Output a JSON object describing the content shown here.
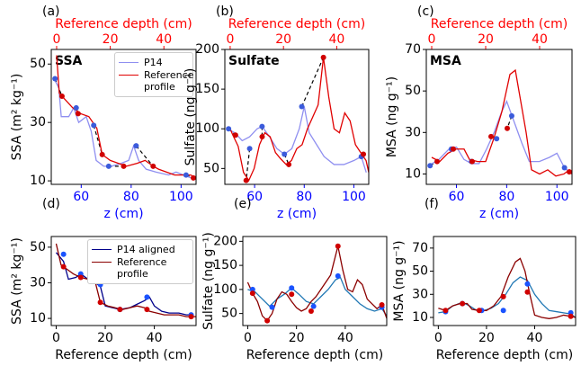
{
  "chart_data": [
    {
      "type": "line",
      "panel_label": "(a)",
      "inner_label": "SSA",
      "ylabel": "SSA (m² kg⁻¹)",
      "xlabel": "z (cm)",
      "x2label": "Reference depth (cm)",
      "xcolor": "#0000ff",
      "x2color": "#ff0000",
      "xlim": [
        48,
        106
      ],
      "xticks": [
        60,
        80,
        100
      ],
      "x2lim": [
        -2,
        52
      ],
      "x2ticks": [
        0,
        20,
        40
      ],
      "ylim": [
        8.8,
        55
      ],
      "yticks": [
        10,
        30,
        50
      ],
      "legend": "upper right",
      "tie_lines": true,
      "series": [
        {
          "name": "P14",
          "color": "#8f8ff0",
          "x": [
            49,
            51,
            52,
            55,
            57,
            59,
            62,
            64,
            66,
            69,
            72,
            76,
            79,
            81,
            83,
            86,
            90,
            95,
            98,
            101,
            104
          ],
          "values": [
            45,
            42,
            32,
            32,
            35,
            30,
            32,
            27,
            17,
            15,
            15,
            16,
            17,
            22,
            17,
            14,
            13,
            12,
            13,
            12,
            11
          ]
        },
        {
          "name": "Reference profile",
          "color": "#e00000",
          "xaxis": "x2",
          "x": [
            0,
            1,
            3,
            6,
            9,
            12,
            15,
            17,
            20,
            23,
            26,
            30,
            33,
            36,
            38,
            41,
            44,
            47,
            50,
            52
          ],
          "values": [
            53,
            40,
            38,
            35,
            33,
            32,
            28,
            19,
            17,
            16,
            15,
            16,
            17,
            15,
            14,
            13,
            12,
            12,
            12,
            11
          ]
        },
        {
          "color": "#3b5bdb",
          "style": "markers",
          "x": [
            49.5,
            58,
            65,
            71,
            82,
            102
          ],
          "values": [
            45,
            35,
            29,
            15,
            22,
            12
          ]
        },
        {
          "color": "#d00000",
          "style": "markers",
          "xaxis": "x2",
          "x": [
            2,
            8,
            17,
            25,
            36,
            51
          ],
          "values": [
            39,
            33,
            19,
            15,
            15,
            11
          ]
        }
      ]
    },
    {
      "type": "line",
      "panel_label": "(b)",
      "inner_label": "Sulfate",
      "ylabel": "Sulfate (ng g⁻¹)",
      "xlabel": "z (cm)",
      "x2label": "Reference depth (cm)",
      "xcolor": "#0000ff",
      "x2color": "#ff0000",
      "xlim": [
        48,
        106
      ],
      "xticks": [
        60,
        80,
        100
      ],
      "x2lim": [
        -2,
        52
      ],
      "x2ticks": [
        0,
        20,
        40
      ],
      "ylim": [
        30,
        200
      ],
      "yticks": [
        50,
        100,
        150,
        200
      ],
      "tie_lines": true,
      "series": [
        {
          "name": "P14",
          "color": "#8f8ff0",
          "x": [
            49,
            52,
            55,
            58,
            61,
            63,
            66,
            69,
            72,
            75,
            78,
            80,
            82,
            85,
            88,
            92,
            96,
            100,
            103,
            105
          ],
          "values": [
            100,
            95,
            85,
            90,
            100,
            103,
            90,
            75,
            68,
            75,
            100,
            128,
            95,
            80,
            65,
            55,
            55,
            60,
            65,
            45
          ]
        },
        {
          "name": "Reference profile",
          "color": "#e00000",
          "xaxis": "x2",
          "x": [
            0,
            1,
            3,
            5,
            7,
            9,
            11,
            13,
            15,
            17,
            19,
            21,
            23,
            25,
            27,
            29,
            31,
            33,
            35,
            37,
            39,
            41,
            43,
            45,
            47,
            49,
            51,
            52
          ],
          "values": [
            100,
            92,
            78,
            45,
            35,
            50,
            80,
            95,
            90,
            70,
            62,
            55,
            60,
            75,
            80,
            100,
            115,
            130,
            190,
            140,
            100,
            95,
            120,
            110,
            80,
            70,
            60,
            45
          ]
        },
        {
          "color": "#3b5bdb",
          "style": "markers",
          "x": [
            49.5,
            58,
            63,
            72,
            79,
            103
          ],
          "values": [
            100,
            75,
            103,
            68,
            128,
            65
          ]
        },
        {
          "color": "#d00000",
          "style": "markers",
          "xaxis": "x2",
          "x": [
            2,
            6,
            12,
            22,
            35,
            50
          ],
          "values": [
            92,
            35,
            90,
            55,
            190,
            68
          ]
        }
      ]
    },
    {
      "type": "line",
      "panel_label": "(c)",
      "inner_label": "MSA",
      "ylabel": "MSA (ng g⁻¹)",
      "xlabel": "z (cm)",
      "x2label": "Reference depth (cm)",
      "xcolor": "#0000ff",
      "x2color": "#ff0000",
      "xlim": [
        48,
        106
      ],
      "xticks": [
        60,
        80,
        100
      ],
      "x2lim": [
        -2,
        52
      ],
      "x2ticks": [
        0,
        20,
        40
      ],
      "ylim": [
        5,
        70
      ],
      "yticks": [
        10,
        30,
        50,
        70
      ],
      "tie_lines": true,
      "series": [
        {
          "name": "P14",
          "color": "#8f8ff0",
          "x": [
            49,
            53,
            57,
            60,
            63,
            66,
            69,
            72,
            75,
            78,
            80,
            83,
            86,
            89,
            93,
            97,
            100,
            103,
            106
          ],
          "values": [
            14,
            17,
            22,
            23,
            17,
            15,
            15,
            22,
            30,
            40,
            45,
            35,
            25,
            16,
            16,
            18,
            20,
            13,
            10
          ]
        },
        {
          "name": "Reference profile",
          "color": "#e00000",
          "xaxis": "x2",
          "x": [
            0,
            3,
            6,
            9,
            12,
            14,
            17,
            20,
            23,
            26,
            29,
            31,
            33,
            35,
            37,
            40,
            43,
            46,
            49,
            51,
            52
          ],
          "values": [
            18,
            16,
            20,
            22,
            22,
            17,
            16,
            16,
            27,
            40,
            58,
            60,
            45,
            30,
            12,
            10,
            12,
            9,
            10,
            12,
            10
          ]
        },
        {
          "color": "#3b5bdb",
          "style": "markers",
          "x": [
            49.5,
            58,
            66,
            76,
            82,
            103
          ],
          "values": [
            14,
            22,
            16,
            27,
            38,
            13
          ]
        },
        {
          "color": "#d00000",
          "style": "markers",
          "xaxis": "x2",
          "x": [
            2,
            8,
            15,
            22,
            28,
            51
          ],
          "values": [
            16,
            22,
            16,
            28,
            32,
            11
          ]
        }
      ]
    },
    {
      "type": "line",
      "panel_label": "(d)",
      "ylabel": "SSA (m² kg⁻¹)",
      "xlabel": "Reference depth (cm)",
      "xcolor": "#000000",
      "xlim": [
        -2,
        57
      ],
      "xticks": [
        0,
        20,
        40
      ],
      "ylim": [
        6,
        56
      ],
      "yticks": [
        10,
        30,
        50
      ],
      "legend": "upper right",
      "series": [
        {
          "name": "P14 aligned",
          "color": "#00008b",
          "x": [
            0,
            3,
            5,
            8,
            10,
            13,
            16,
            18,
            20,
            23,
            26,
            30,
            33,
            36,
            38,
            40,
            43,
            46,
            50,
            53,
            55
          ],
          "values": [
            47,
            42,
            32,
            33,
            35,
            32,
            30,
            28,
            17,
            16,
            15,
            16,
            18,
            20,
            22,
            17,
            14,
            13,
            13,
            12,
            12
          ]
        },
        {
          "name": "Reference profile",
          "color": "#8b0000",
          "x": [
            0,
            2,
            4,
            7,
            10,
            13,
            16,
            18,
            21,
            24,
            27,
            30,
            33,
            36,
            38,
            41,
            44,
            47,
            50,
            53,
            57
          ],
          "values": [
            52,
            40,
            38,
            35,
            33,
            32,
            30,
            19,
            17,
            16,
            15,
            16,
            17,
            16,
            14,
            13,
            12,
            12,
            12,
            11,
            11
          ]
        },
        {
          "color": "#1a53ff",
          "style": "markers",
          "x": [
            3,
            10,
            18,
            26,
            37,
            55
          ],
          "values": [
            46,
            35,
            29,
            15,
            22,
            12
          ]
        },
        {
          "color": "#d00000",
          "style": "markers",
          "x": [
            3,
            10,
            18,
            26,
            37,
            55
          ],
          "values": [
            39,
            33,
            19,
            15,
            15,
            11
          ]
        }
      ]
    },
    {
      "type": "line",
      "panel_label": "(e)",
      "ylabel": "Sulfate (ng g⁻¹)",
      "xlabel": "Reference depth (cm)",
      "xcolor": "#000000",
      "xlim": [
        -2,
        57
      ],
      "xticks": [
        0,
        20,
        40
      ],
      "ylim": [
        25,
        210
      ],
      "yticks": [
        50,
        100,
        150,
        200
      ],
      "series": [
        {
          "color": "#1f77b4",
          "x": [
            0,
            3,
            6,
            9,
            12,
            15,
            18,
            21,
            24,
            27,
            30,
            33,
            36,
            38,
            40,
            43,
            46,
            49,
            52,
            55,
            57
          ],
          "values": [
            100,
            95,
            80,
            65,
            80,
            90,
            103,
            90,
            75,
            70,
            85,
            100,
            120,
            125,
            100,
            85,
            70,
            60,
            55,
            60,
            45
          ]
        },
        {
          "color": "#8b0000",
          "x": [
            0,
            2,
            4,
            6,
            8,
            10,
            12,
            14,
            16,
            18,
            20,
            22,
            24,
            26,
            28,
            30,
            32,
            34,
            37,
            39,
            41,
            43,
            45,
            47,
            49,
            51,
            53,
            55,
            57
          ],
          "values": [
            115,
            92,
            75,
            45,
            35,
            50,
            80,
            95,
            90,
            75,
            62,
            55,
            60,
            75,
            85,
            100,
            115,
            130,
            190,
            140,
            100,
            95,
            120,
            110,
            80,
            70,
            60,
            68,
            40
          ]
        },
        {
          "color": "#1a53ff",
          "style": "markers",
          "x": [
            2,
            10,
            18,
            27,
            37,
            55
          ],
          "values": [
            100,
            63,
            103,
            65,
            128,
            63
          ]
        },
        {
          "color": "#d00000",
          "style": "markers",
          "x": [
            2,
            8,
            18,
            26,
            37,
            55
          ],
          "values": [
            92,
            35,
            90,
            55,
            190,
            68
          ]
        }
      ]
    },
    {
      "type": "line",
      "panel_label": "(f)",
      "ylabel": "MSA (ng g⁻¹)",
      "xlabel": "Reference depth (cm)",
      "xcolor": "#000000",
      "xlim": [
        -2,
        57
      ],
      "xticks": [
        0,
        20,
        40
      ],
      "ylim": [
        3,
        80
      ],
      "yticks": [
        10,
        30,
        50,
        70
      ],
      "series": [
        {
          "color": "#1f77b4",
          "x": [
            0,
            3,
            6,
            10,
            13,
            16,
            19,
            22,
            25,
            28,
            31,
            34,
            37,
            40,
            43,
            46,
            49,
            52,
            55,
            57
          ],
          "values": [
            14,
            15,
            20,
            23,
            20,
            16,
            16,
            18,
            22,
            30,
            40,
            45,
            42,
            30,
            22,
            16,
            15,
            14,
            13,
            10
          ]
        },
        {
          "color": "#8b0000",
          "x": [
            0,
            3,
            6,
            9,
            12,
            14,
            17,
            20,
            23,
            26,
            29,
            32,
            34,
            36,
            38,
            40,
            43,
            46,
            49,
            52,
            55,
            57
          ],
          "values": [
            18,
            16,
            20,
            22,
            22,
            17,
            16,
            16,
            20,
            28,
            45,
            58,
            61,
            50,
            30,
            12,
            10,
            9,
            10,
            12,
            11,
            10
          ]
        },
        {
          "color": "#1a53ff",
          "style": "markers",
          "x": [
            3,
            10,
            18,
            27,
            37,
            55
          ],
          "values": [
            15,
            22,
            16,
            16,
            39,
            14
          ]
        },
        {
          "color": "#d00000",
          "style": "markers",
          "x": [
            3,
            10,
            17,
            27,
            37,
            55
          ],
          "values": [
            16,
            22,
            16,
            28,
            32,
            11
          ]
        }
      ]
    }
  ]
}
